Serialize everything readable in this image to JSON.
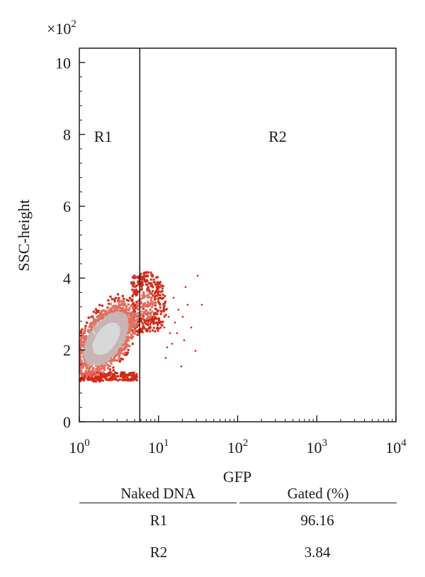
{
  "chart_data": {
    "type": "scatter",
    "title": "",
    "xlabel": "GFP",
    "ylabel": "SSC-height",
    "x_scale": "log",
    "xlim": [
      1,
      10000
    ],
    "ylim": [
      0,
      10.4
    ],
    "y_multiplier_label": "×10",
    "y_multiplier_exponent": "2",
    "x_ticks": [
      {
        "value": 1,
        "base": "10",
        "exp": "0"
      },
      {
        "value": 10,
        "base": "10",
        "exp": "1"
      },
      {
        "value": 100,
        "base": "10",
        "exp": "2"
      },
      {
        "value": 1000,
        "base": "10",
        "exp": "3"
      },
      {
        "value": 10000,
        "base": "10",
        "exp": "4"
      }
    ],
    "y_ticks": [
      {
        "value": 0,
        "label": "0"
      },
      {
        "value": 2,
        "label": "2"
      },
      {
        "value": 4,
        "label": "4"
      },
      {
        "value": 6,
        "label": "6"
      },
      {
        "value": 8,
        "label": "8"
      },
      {
        "value": 10,
        "label": "10"
      }
    ],
    "gate_x": 5.8,
    "regions": [
      {
        "name": "R1",
        "x": 2.0,
        "y": 7.95
      },
      {
        "name": "R2",
        "x": 320,
        "y": 7.95
      }
    ],
    "density_colors": {
      "outer": "#d42a1a",
      "mid": "#e07060",
      "inner": "#c8b4b4",
      "core": "#d8d8d8"
    },
    "grid": false,
    "legend": "none"
  },
  "table": {
    "headers": [
      "Naked DNA",
      "Gated (%)"
    ],
    "rows": [
      [
        "R1",
        "96.16"
      ],
      [
        "R2",
        "3.84"
      ]
    ]
  }
}
